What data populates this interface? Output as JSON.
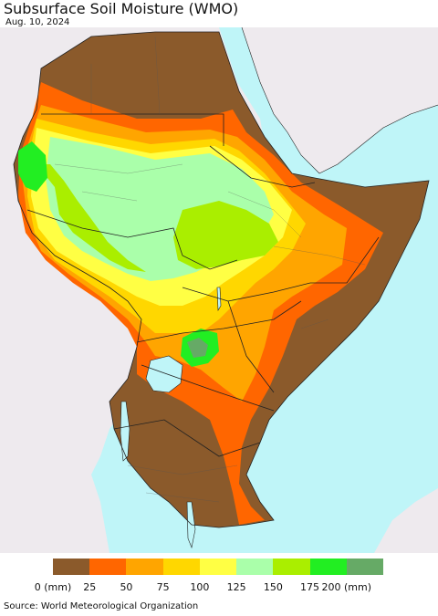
{
  "title": "Subsurface Soil Moisture (WMO)",
  "date": "Aug. 10, 2024",
  "source": "Source: World Meteorological Organization",
  "legend": {
    "colors": [
      "#8B5A2B",
      "#FF6600",
      "#FFA500",
      "#FFD700",
      "#FFFF44",
      "#AAFFAA",
      "#AAEE00",
      "#22EE22",
      "#66AA66"
    ],
    "labels": [
      "0 (mm)",
      "25",
      "50",
      "75",
      "100",
      "125",
      "150",
      "175",
      "200 (mm)"
    ]
  },
  "colors": {
    "water": "#BFF5F8",
    "land_outside": "#EEEAEE",
    "borders": "#222222"
  }
}
